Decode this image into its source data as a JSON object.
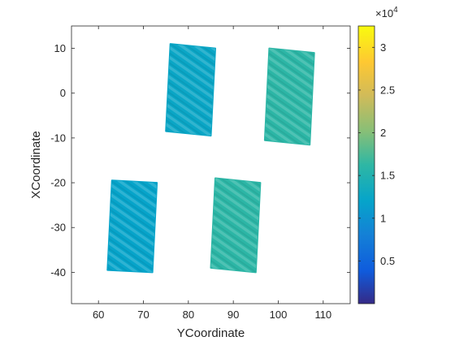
{
  "chart_data": {
    "type": "scatter",
    "title": "",
    "xlabel": "YCoordinate",
    "ylabel": "XCoordinate",
    "xlim": [
      54,
      116
    ],
    "ylim": [
      -47,
      15
    ],
    "xticks": [
      60,
      70,
      80,
      90,
      100,
      110
    ],
    "yticks": [
      10,
      0,
      -10,
      -20,
      -30,
      -40
    ],
    "xtick_labels": [
      "60",
      "70",
      "80",
      "90",
      "100",
      "110"
    ],
    "ytick_labels": [
      "10",
      "0",
      "-10",
      "-20",
      "-30",
      "-40"
    ],
    "grid": false,
    "colormap": "parula",
    "colorbar": {
      "clim": [
        0,
        32500
      ],
      "ticks": [
        5000,
        10000,
        15000,
        20000,
        25000,
        30000
      ],
      "tick_labels": [
        "0.5",
        "1",
        "1.5",
        "2",
        "2.5",
        "3"
      ],
      "exponent_base": "×10",
      "exponent_power": "4"
    },
    "regions": [
      {
        "corners": [
          [
            76,
            11
          ],
          [
            86,
            10
          ],
          [
            85,
            -9.5
          ],
          [
            75,
            -8.5
          ]
        ],
        "value": 12500
      },
      {
        "corners": [
          [
            98,
            10
          ],
          [
            108,
            9
          ],
          [
            107,
            -11.5
          ],
          [
            97,
            -10.5
          ]
        ],
        "value": 16000
      },
      {
        "corners": [
          [
            63,
            -19.5
          ],
          [
            73,
            -20
          ],
          [
            72,
            -40
          ],
          [
            62,
            -39.5
          ]
        ],
        "value": 12000
      },
      {
        "corners": [
          [
            86,
            -19
          ],
          [
            96,
            -20
          ],
          [
            95,
            -40
          ],
          [
            85,
            -39
          ]
        ],
        "value": 16000
      }
    ]
  }
}
